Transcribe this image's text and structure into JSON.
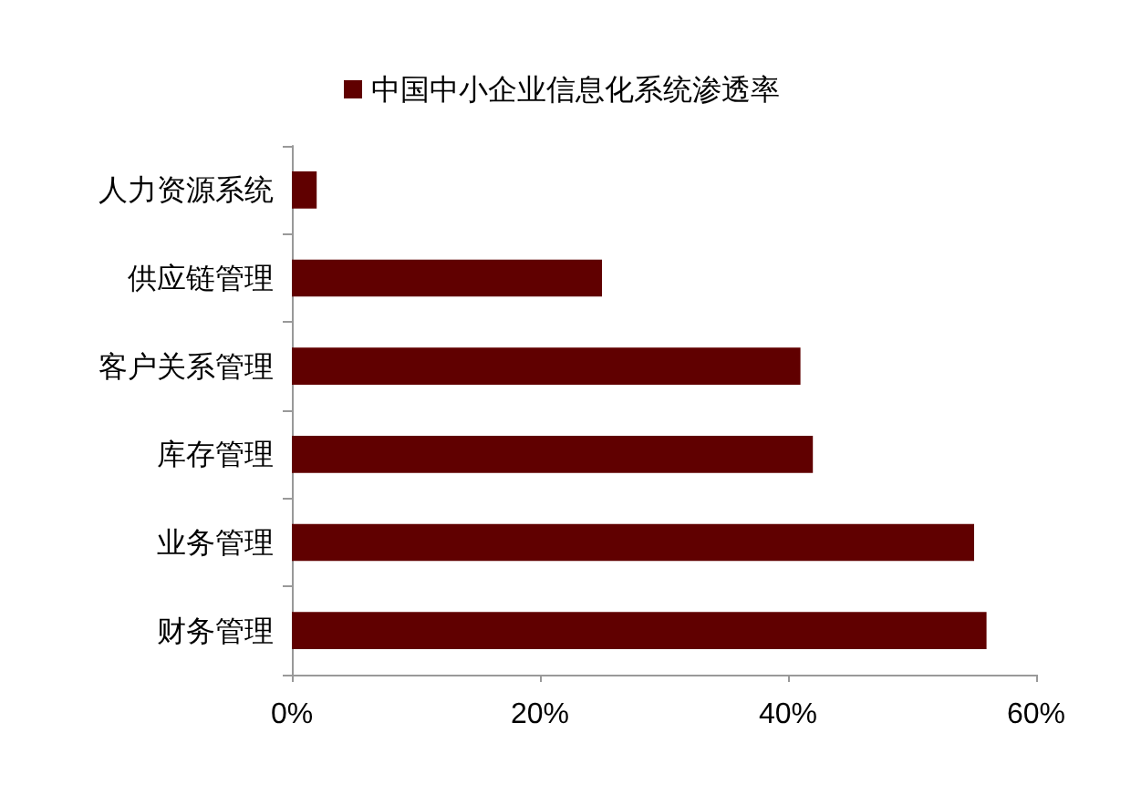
{
  "chart_data": {
    "type": "bar",
    "orientation": "horizontal",
    "categories": [
      "人力资源系统",
      "供应链管理",
      "客户关系管理",
      "库存管理",
      "业务管理",
      "财务管理"
    ],
    "series": [
      {
        "name": "中国中小企业信息化系统渗透率",
        "color": "#600000",
        "values": [
          2,
          25,
          41,
          42,
          55,
          56
        ]
      }
    ],
    "xlim": [
      0,
      60
    ],
    "xticks": [
      {
        "value": 0,
        "label": "0%"
      },
      {
        "value": 20,
        "label": "20%"
      },
      {
        "value": 40,
        "label": "40%"
      },
      {
        "value": 60,
        "label": "60%"
      }
    ],
    "grid": false,
    "legend": "top"
  }
}
